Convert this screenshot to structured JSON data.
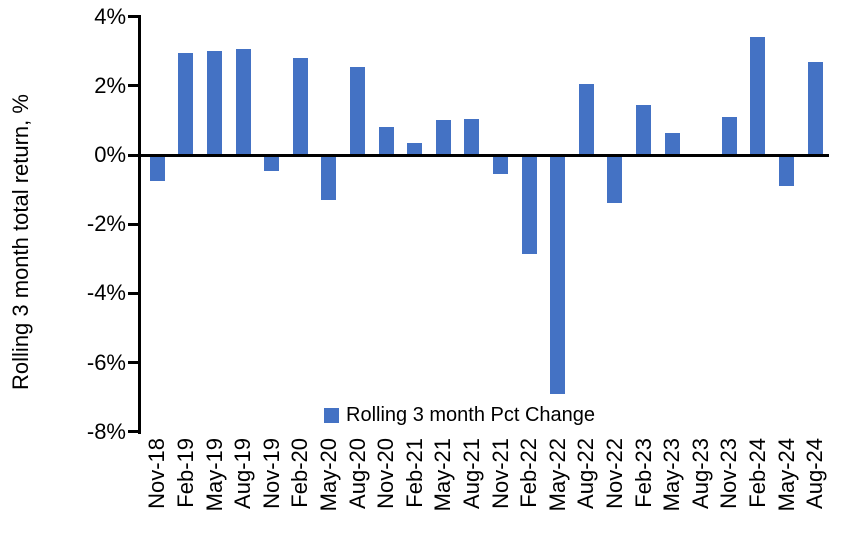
{
  "chart_data": {
    "type": "bar",
    "title": "",
    "xlabel": "",
    "ylabel": "Rolling 3 month total return, %",
    "ylim": [
      -8,
      4
    ],
    "ytick_step": 2,
    "ytick_labels": [
      "4%",
      "2%",
      "0%",
      "-2%",
      "-4%",
      "-6%",
      "-8%"
    ],
    "grid": false,
    "categories": [
      "Nov-18",
      "Feb-19",
      "May-19",
      "Aug-19",
      "Nov-19",
      "Feb-20",
      "May-20",
      "Aug-20",
      "Nov-20",
      "Feb-21",
      "May-21",
      "Aug-21",
      "Nov-21",
      "Feb-22",
      "May-22",
      "Aug-22",
      "Nov-22",
      "Feb-23",
      "May-23",
      "Aug-23",
      "Nov-23",
      "Feb-24",
      "May-24",
      "Aug-24"
    ],
    "series": [
      {
        "name": "Rolling 3 month Pct Change",
        "values": [
          -0.75,
          2.95,
          3.0,
          3.05,
          -0.45,
          2.8,
          -1.3,
          2.55,
          0.8,
          0.35,
          1.0,
          1.05,
          -0.55,
          -2.85,
          -6.9,
          2.05,
          -1.4,
          1.45,
          0.65,
          0.0,
          1.1,
          3.4,
          -0.9,
          2.7
        ]
      }
    ],
    "legend": {
      "label": "Rolling 3 month Pct Change",
      "position": "bottom-center-inside"
    },
    "colors": {
      "bar": "#4472C4",
      "axis": "#000000",
      "text": "#000000",
      "background": "#ffffff"
    }
  }
}
